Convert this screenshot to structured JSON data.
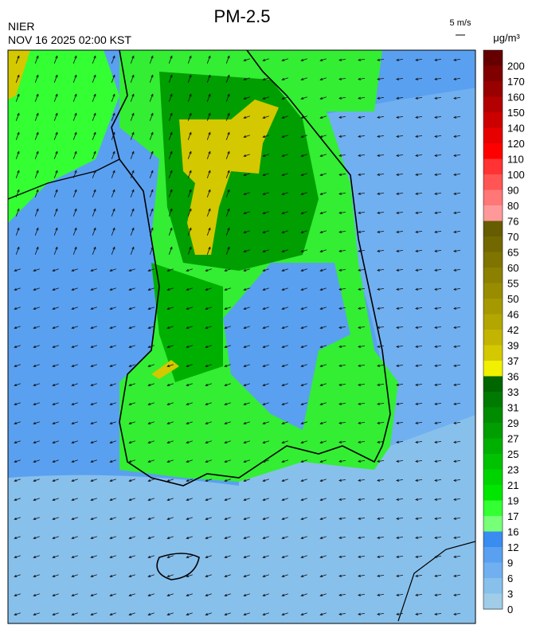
{
  "header": {
    "title": "PM-2.5",
    "source": "NIER",
    "datetime": "NOV 16 2025 02:00 KST",
    "wind_scale": "5 m/s",
    "unit": "μg/m³"
  },
  "legend": {
    "colors": [
      "#660000",
      "#800000",
      "#990000",
      "#b30000",
      "#cc0000",
      "#e60000",
      "#ff0000",
      "#ff3333",
      "#ff5555",
      "#ff7777",
      "#ff9999",
      "#665c00",
      "#736800",
      "#807400",
      "#8c8000",
      "#998c00",
      "#a69900",
      "#b3a600",
      "#c2b400",
      "#d4c800",
      "#f0f000",
      "#006600",
      "#007a00",
      "#008c00",
      "#009e00",
      "#00b000",
      "#00c200",
      "#00d400",
      "#00e600",
      "#33ff33",
      "#77ff77",
      "#3a8cf0",
      "#5aa0f0",
      "#70b0f0",
      "#88c0ec",
      "#a0cce8"
    ],
    "labels": [
      "200",
      "170",
      "160",
      "150",
      "140",
      "120",
      "110",
      "100",
      "90",
      "80",
      "76",
      "70",
      "65",
      "60",
      "55",
      "50",
      "46",
      "42",
      "39",
      "37",
      "36",
      "33",
      "31",
      "29",
      "27",
      "25",
      "23",
      "21",
      "19",
      "17",
      "16",
      "12",
      "9",
      "6",
      "3",
      "0"
    ]
  }
}
